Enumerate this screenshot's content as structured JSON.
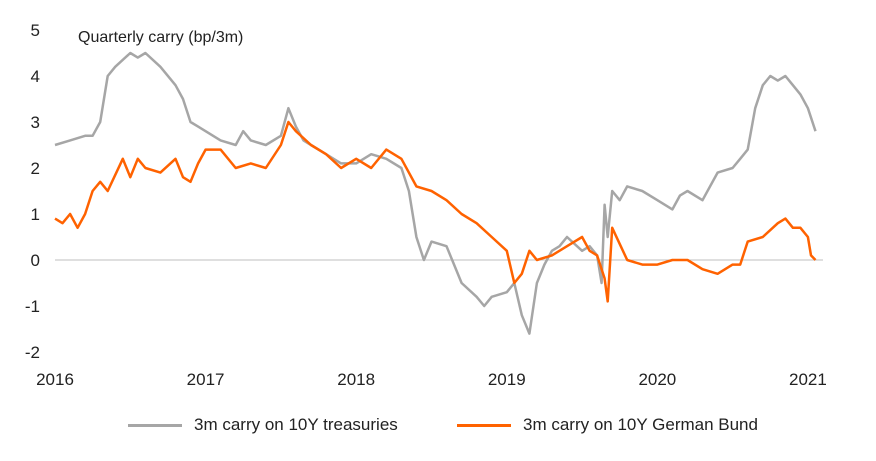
{
  "chart_data": {
    "type": "line",
    "ylabel": "Quarterly carry (bp/3m)",
    "ylim": [
      -2,
      5
    ],
    "yticks": [
      "5",
      "4",
      "3",
      "2",
      "1",
      "0",
      "-1",
      "-2"
    ],
    "xlim": [
      2016.0,
      2021.1
    ],
    "xticks": [
      "2016",
      "2017",
      "2018",
      "2019",
      "2020",
      "2021"
    ],
    "legend_position": "bottom",
    "series": [
      {
        "name": "3m carry on 10Y treasuries",
        "color": "#a6a6a6",
        "x": [
          2016.0,
          2016.1,
          2016.2,
          2016.25,
          2016.3,
          2016.35,
          2016.4,
          2016.5,
          2016.55,
          2016.6,
          2016.7,
          2016.8,
          2016.85,
          2016.9,
          2016.95,
          2017.0,
          2017.1,
          2017.2,
          2017.25,
          2017.3,
          2017.4,
          2017.5,
          2017.55,
          2017.6,
          2017.65,
          2017.7,
          2017.8,
          2017.9,
          2018.0,
          2018.1,
          2018.2,
          2018.3,
          2018.35,
          2018.4,
          2018.45,
          2018.5,
          2018.6,
          2018.7,
          2018.8,
          2018.85,
          2018.9,
          2019.0,
          2019.05,
          2019.1,
          2019.15,
          2019.2,
          2019.25,
          2019.3,
          2019.35,
          2019.4,
          2019.5,
          2019.55,
          2019.6,
          2019.63,
          2019.65,
          2019.67,
          2019.7,
          2019.75,
          2019.8,
          2019.9,
          2020.0,
          2020.1,
          2020.15,
          2020.2,
          2020.3,
          2020.4,
          2020.5,
          2020.55,
          2020.6,
          2020.65,
          2020.7,
          2020.75,
          2020.8,
          2020.85,
          2020.9,
          2020.95,
          2021.0,
          2021.05
        ],
        "values": [
          2.5,
          2.6,
          2.7,
          2.7,
          3.0,
          4.0,
          4.2,
          4.5,
          4.4,
          4.5,
          4.2,
          3.8,
          3.5,
          3.0,
          2.9,
          2.8,
          2.6,
          2.5,
          2.8,
          2.6,
          2.5,
          2.7,
          3.3,
          2.9,
          2.6,
          2.5,
          2.3,
          2.1,
          2.1,
          2.3,
          2.2,
          2.0,
          1.5,
          0.5,
          0.0,
          0.4,
          0.3,
          -0.5,
          -0.8,
          -1.0,
          -0.8,
          -0.7,
          -0.5,
          -1.2,
          -1.6,
          -0.5,
          -0.1,
          0.2,
          0.3,
          0.5,
          0.2,
          0.3,
          0.1,
          -0.5,
          1.2,
          0.5,
          1.5,
          1.3,
          1.6,
          1.5,
          1.3,
          1.1,
          1.4,
          1.5,
          1.3,
          1.9,
          2.0,
          2.2,
          2.4,
          3.3,
          3.8,
          4.0,
          3.9,
          4.0,
          3.8,
          3.6,
          3.3,
          2.8
        ]
      },
      {
        "name": "3m carry on 10Y German Bund",
        "color": "#ff6200",
        "x": [
          2016.0,
          2016.05,
          2016.1,
          2016.15,
          2016.2,
          2016.25,
          2016.3,
          2016.35,
          2016.45,
          2016.5,
          2016.55,
          2016.6,
          2016.7,
          2016.8,
          2016.85,
          2016.9,
          2016.95,
          2017.0,
          2017.1,
          2017.2,
          2017.3,
          2017.4,
          2017.5,
          2017.55,
          2017.6,
          2017.7,
          2017.8,
          2017.9,
          2018.0,
          2018.1,
          2018.2,
          2018.3,
          2018.4,
          2018.5,
          2018.6,
          2018.7,
          2018.8,
          2018.9,
          2019.0,
          2019.05,
          2019.1,
          2019.15,
          2019.2,
          2019.3,
          2019.4,
          2019.5,
          2019.55,
          2019.6,
          2019.65,
          2019.67,
          2019.7,
          2019.8,
          2019.9,
          2020.0,
          2020.1,
          2020.2,
          2020.3,
          2020.4,
          2020.5,
          2020.55,
          2020.6,
          2020.7,
          2020.8,
          2020.85,
          2020.9,
          2020.95,
          2021.0,
          2021.02,
          2021.05
        ],
        "values": [
          0.9,
          0.8,
          1.0,
          0.7,
          1.0,
          1.5,
          1.7,
          1.5,
          2.2,
          1.8,
          2.2,
          2.0,
          1.9,
          2.2,
          1.8,
          1.7,
          2.1,
          2.4,
          2.4,
          2.0,
          2.1,
          2.0,
          2.5,
          3.0,
          2.8,
          2.5,
          2.3,
          2.0,
          2.2,
          2.0,
          2.4,
          2.2,
          1.6,
          1.5,
          1.3,
          1.0,
          0.8,
          0.5,
          0.2,
          -0.5,
          -0.3,
          0.2,
          0.0,
          0.1,
          0.3,
          0.5,
          0.2,
          0.1,
          -0.4,
          -0.9,
          0.7,
          0.0,
          -0.1,
          -0.1,
          0.0,
          0.0,
          -0.2,
          -0.3,
          -0.1,
          -0.1,
          0.4,
          0.5,
          0.8,
          0.9,
          0.7,
          0.7,
          0.5,
          0.1,
          0.0
        ]
      }
    ]
  }
}
